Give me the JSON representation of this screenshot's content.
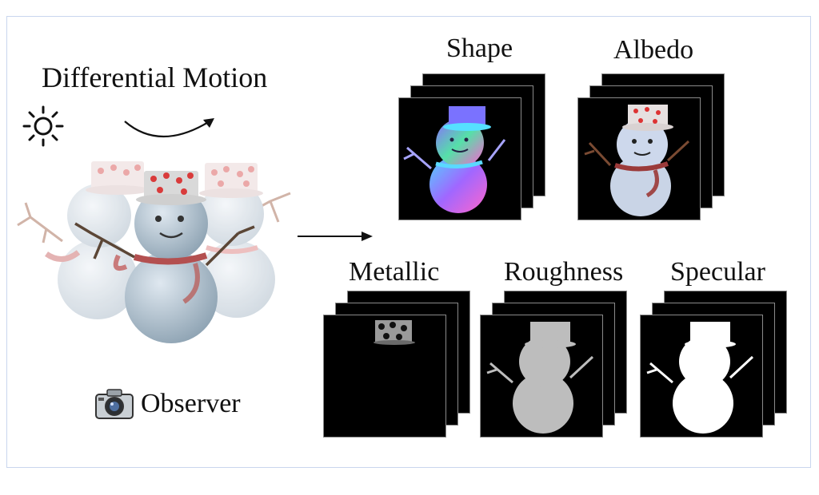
{
  "title": "Differential Motion",
  "observer": "Observer",
  "icons": [
    "sun-icon",
    "camera-icon"
  ],
  "outputs": [
    {
      "key": "shape",
      "label": "Shape"
    },
    {
      "key": "albedo",
      "label": "Albedo"
    },
    {
      "key": "metallic",
      "label": "Metallic"
    },
    {
      "key": "roughness",
      "label": "Roughness"
    },
    {
      "key": "specular",
      "label": "Specular"
    }
  ],
  "colors": {
    "frame": "#c9d6ee",
    "roughness_gray": "#bdbdbd",
    "specular_white": "#ffffff"
  }
}
